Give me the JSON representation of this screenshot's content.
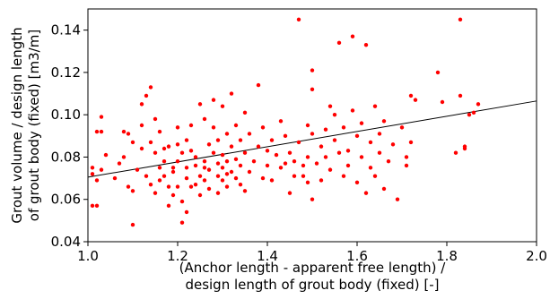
{
  "chart_data": {
    "type": "scatter",
    "xlabel_lines": [
      "(Anchor length - apparent free length) /",
      "design length of grout body (fixed) [-]"
    ],
    "ylabel_lines": [
      "Grout volume / design length",
      "of grout body (fixed) [m3/m]"
    ],
    "xlim": [
      1.0,
      2.0
    ],
    "ylim": [
      0.04,
      0.15
    ],
    "xticks": [
      "1.0",
      "1.2",
      "1.4",
      "1.6",
      "1.8",
      "2.0"
    ],
    "yticks": [
      "0.04",
      "0.06",
      "0.08",
      "0.10",
      "0.12",
      "0.14"
    ],
    "grid": false,
    "point_color": "#ff0000",
    "line_color": "#000000",
    "trendline": {
      "x": [
        1.0,
        2.0
      ],
      "y": [
        0.0705,
        0.1065
      ]
    },
    "points": [
      [
        1.01,
        0.075
      ],
      [
        1.01,
        0.072
      ],
      [
        1.01,
        0.057
      ],
      [
        1.02,
        0.092
      ],
      [
        1.02,
        0.057
      ],
      [
        1.02,
        0.069
      ],
      [
        1.03,
        0.092
      ],
      [
        1.03,
        0.099
      ],
      [
        1.03,
        0.074
      ],
      [
        1.04,
        0.081
      ],
      [
        1.06,
        0.07
      ],
      [
        1.07,
        0.077
      ],
      [
        1.08,
        0.08
      ],
      [
        1.08,
        0.092
      ],
      [
        1.09,
        0.066
      ],
      [
        1.09,
        0.091
      ],
      [
        1.1,
        0.087
      ],
      [
        1.1,
        0.048
      ],
      [
        1.1,
        0.064
      ],
      [
        1.11,
        0.074
      ],
      [
        1.12,
        0.095
      ],
      [
        1.12,
        0.105
      ],
      [
        1.12,
        0.084
      ],
      [
        1.13,
        0.071
      ],
      [
        1.13,
        0.109
      ],
      [
        1.14,
        0.067
      ],
      [
        1.14,
        0.113
      ],
      [
        1.14,
        0.087
      ],
      [
        1.15,
        0.098
      ],
      [
        1.15,
        0.082
      ],
      [
        1.15,
        0.063
      ],
      [
        1.16,
        0.075
      ],
      [
        1.16,
        0.069
      ],
      [
        1.16,
        0.092
      ],
      [
        1.17,
        0.071
      ],
      [
        1.17,
        0.084
      ],
      [
        1.17,
        0.078
      ],
      [
        1.18,
        0.066
      ],
      [
        1.18,
        0.057
      ],
      [
        1.18,
        0.085
      ],
      [
        1.19,
        0.075
      ],
      [
        1.19,
        0.062
      ],
      [
        1.19,
        0.073
      ],
      [
        1.2,
        0.086
      ],
      [
        1.2,
        0.078
      ],
      [
        1.2,
        0.066
      ],
      [
        1.2,
        0.094
      ],
      [
        1.21,
        0.059
      ],
      [
        1.21,
        0.082
      ],
      [
        1.21,
        0.049
      ],
      [
        1.22,
        0.07
      ],
      [
        1.22,
        0.088
      ],
      [
        1.22,
        0.054
      ],
      [
        1.22,
        0.075
      ],
      [
        1.23,
        0.083
      ],
      [
        1.23,
        0.066
      ],
      [
        1.23,
        0.095
      ],
      [
        1.24,
        0.076
      ],
      [
        1.24,
        0.067
      ],
      [
        1.24,
        0.08
      ],
      [
        1.25,
        0.071
      ],
      [
        1.25,
        0.105
      ],
      [
        1.25,
        0.062
      ],
      [
        1.26,
        0.098
      ],
      [
        1.26,
        0.075
      ],
      [
        1.26,
        0.069
      ],
      [
        1.26,
        0.078
      ],
      [
        1.27,
        0.086
      ],
      [
        1.27,
        0.065
      ],
      [
        1.27,
        0.074
      ],
      [
        1.28,
        0.107
      ],
      [
        1.28,
        0.094
      ],
      [
        1.28,
        0.082
      ],
      [
        1.29,
        0.071
      ],
      [
        1.29,
        0.077
      ],
      [
        1.29,
        0.088
      ],
      [
        1.29,
        0.063
      ],
      [
        1.3,
        0.104
      ],
      [
        1.3,
        0.075
      ],
      [
        1.3,
        0.069
      ],
      [
        1.3,
        0.081
      ],
      [
        1.31,
        0.091
      ],
      [
        1.31,
        0.072
      ],
      [
        1.31,
        0.066
      ],
      [
        1.31,
        0.078
      ],
      [
        1.32,
        0.11
      ],
      [
        1.32,
        0.085
      ],
      [
        1.32,
        0.073
      ],
      [
        1.33,
        0.095
      ],
      [
        1.33,
        0.07
      ],
      [
        1.33,
        0.079
      ],
      [
        1.34,
        0.088
      ],
      [
        1.34,
        0.067
      ],
      [
        1.34,
        0.076
      ],
      [
        1.35,
        0.082
      ],
      [
        1.35,
        0.064
      ],
      [
        1.35,
        0.101
      ],
      [
        1.36,
        0.073
      ],
      [
        1.36,
        0.091
      ],
      [
        1.37,
        0.078
      ],
      [
        1.38,
        0.085
      ],
      [
        1.38,
        0.114
      ],
      [
        1.39,
        0.094
      ],
      [
        1.39,
        0.07
      ],
      [
        1.4,
        0.083
      ],
      [
        1.4,
        0.076
      ],
      [
        1.41,
        0.088
      ],
      [
        1.41,
        0.069
      ],
      [
        1.42,
        0.081
      ],
      [
        1.43,
        0.097
      ],
      [
        1.43,
        0.075
      ],
      [
        1.44,
        0.09
      ],
      [
        1.44,
        0.077
      ],
      [
        1.45,
        0.063
      ],
      [
        1.45,
        0.082
      ],
      [
        1.46,
        0.071
      ],
      [
        1.46,
        0.078
      ],
      [
        1.47,
        0.145
      ],
      [
        1.47,
        0.087
      ],
      [
        1.48,
        0.076
      ],
      [
        1.48,
        0.071
      ],
      [
        1.49,
        0.095
      ],
      [
        1.49,
        0.068
      ],
      [
        1.49,
        0.08
      ],
      [
        1.5,
        0.06
      ],
      [
        1.5,
        0.121
      ],
      [
        1.5,
        0.091
      ],
      [
        1.5,
        0.112
      ],
      [
        1.51,
        0.077
      ],
      [
        1.52,
        0.069
      ],
      [
        1.52,
        0.085
      ],
      [
        1.53,
        0.093
      ],
      [
        1.53,
        0.08
      ],
      [
        1.54,
        0.104
      ],
      [
        1.54,
        0.074
      ],
      [
        1.55,
        0.1
      ],
      [
        1.55,
        0.088
      ],
      [
        1.56,
        0.134
      ],
      [
        1.56,
        0.082
      ],
      [
        1.57,
        0.071
      ],
      [
        1.57,
        0.094
      ],
      [
        1.58,
        0.083
      ],
      [
        1.58,
        0.076
      ],
      [
        1.59,
        0.102
      ],
      [
        1.59,
        0.137
      ],
      [
        1.6,
        0.09
      ],
      [
        1.6,
        0.068
      ],
      [
        1.61,
        0.08
      ],
      [
        1.61,
        0.096
      ],
      [
        1.62,
        0.133
      ],
      [
        1.62,
        0.063
      ],
      [
        1.63,
        0.087
      ],
      [
        1.63,
        0.075
      ],
      [
        1.64,
        0.104
      ],
      [
        1.64,
        0.071
      ],
      [
        1.65,
        0.091
      ],
      [
        1.65,
        0.082
      ],
      [
        1.66,
        0.097
      ],
      [
        1.66,
        0.065
      ],
      [
        1.67,
        0.078
      ],
      [
        1.68,
        0.086
      ],
      [
        1.69,
        0.06
      ],
      [
        1.7,
        0.094
      ],
      [
        1.71,
        0.08
      ],
      [
        1.71,
        0.076
      ],
      [
        1.72,
        0.109
      ],
      [
        1.72,
        0.087
      ],
      [
        1.73,
        0.107
      ],
      [
        1.78,
        0.12
      ],
      [
        1.79,
        0.106
      ],
      [
        1.82,
        0.082
      ],
      [
        1.83,
        0.109
      ],
      [
        1.83,
        0.145
      ],
      [
        1.84,
        0.084
      ],
      [
        1.84,
        0.085
      ],
      [
        1.85,
        0.1
      ],
      [
        1.86,
        0.101
      ],
      [
        1.87,
        0.105
      ]
    ]
  }
}
